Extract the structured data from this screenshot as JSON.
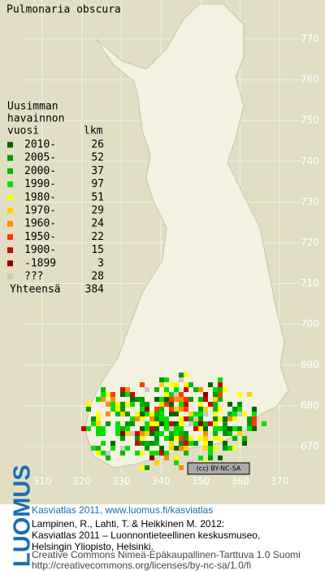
{
  "title": "Pulmonaria obscura",
  "legend": {
    "heading": [
      "Uusimman",
      "havainnon"
    ],
    "col_year": "vuosi",
    "col_count": "lkm",
    "rows": [
      {
        "label": "2010-",
        "count": 26,
        "color": "#006400"
      },
      {
        "label": "2005-",
        "count": 52,
        "color": "#009600"
      },
      {
        "label": "2000-",
        "count": 37,
        "color": "#00b800"
      },
      {
        "label": "1990-",
        "count": 97,
        "color": "#00e000"
      },
      {
        "label": "1980-",
        "count": 51,
        "color": "#ffff00"
      },
      {
        "label": "1970-",
        "count": 29,
        "color": "#ffd200"
      },
      {
        "label": "1960-",
        "count": 24,
        "color": "#ff8c00"
      },
      {
        "label": "1950-",
        "count": 22,
        "color": "#ff3c00"
      },
      {
        "label": "1900-",
        "count": 15,
        "color": "#d20000"
      },
      {
        "label": "-1899",
        "count": 3,
        "color": "#8c0000"
      },
      {
        "label": "???",
        "count": 28,
        "color": "#c8c8c8"
      }
    ],
    "total_label": "Yhteensä",
    "total": 384
  },
  "map": {
    "xticks": [
      310,
      320,
      330,
      340,
      350,
      360,
      370
    ],
    "yticks": [
      670,
      680,
      690,
      700,
      710,
      720,
      730,
      740,
      750,
      760,
      770
    ],
    "license": "(cc) BY-NC-SA"
  },
  "footer": {
    "logo": "LUOMUS",
    "link": "Kasviatlas 2011, www.luomus.fi/kasviatlas",
    "citation": [
      "Lampinen, R., Lahti, T. & Heikkinen M. 2012:",
      "Kasviatlas 2011 – Luonnontieteellinen keskusmuseo,",
      "Helsingin Yliopisto, Helsinki."
    ],
    "license_text": [
      "Creative Commons Nimeä-Epäkaupallinen-Tarttuva 1.0 Suomi",
      "http://creativecommons.org/licenses/by-nc-sa/1.0/fi"
    ]
  }
}
